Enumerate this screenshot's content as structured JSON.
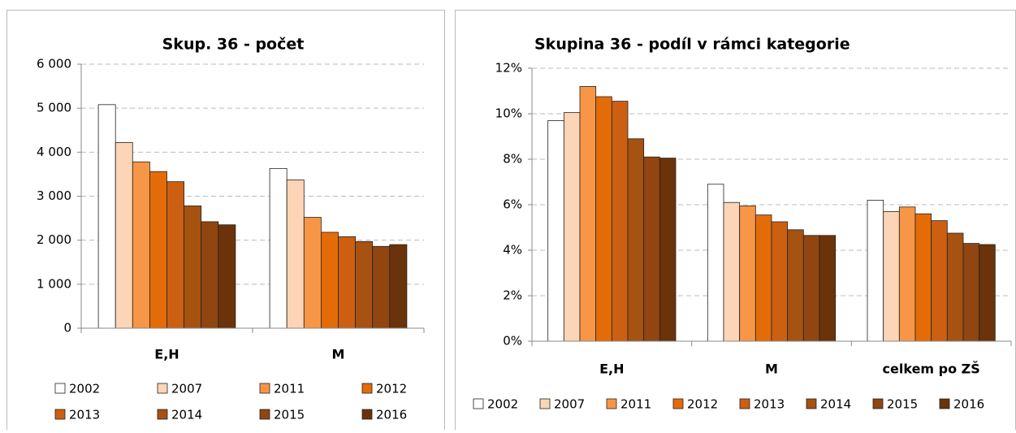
{
  "chart_data": [
    {
      "type": "bar",
      "title": "Skup. 36 - počet",
      "categories": [
        "E,H",
        "M"
      ],
      "series": [
        {
          "name": "2002",
          "color": "#ffffff",
          "values": [
            5080,
            3630
          ]
        },
        {
          "name": "2007",
          "color": "#fbd5b5",
          "values": [
            4220,
            3370
          ]
        },
        {
          "name": "2011",
          "color": "#f79646",
          "values": [
            3780,
            2520
          ]
        },
        {
          "name": "2012",
          "color": "#e36c09",
          "values": [
            3560,
            2180
          ]
        },
        {
          "name": "2013",
          "color": "#cc5f12",
          "values": [
            3330,
            2080
          ]
        },
        {
          "name": "2014",
          "color": "#a65210",
          "values": [
            2780,
            1970
          ]
        },
        {
          "name": "2015",
          "color": "#914510",
          "values": [
            2420,
            1860
          ]
        },
        {
          "name": "2016",
          "color": "#6b3309",
          "values": [
            2350,
            1900
          ]
        }
      ],
      "ylim": [
        0,
        6000
      ],
      "yticks": [
        0,
        {
          "value": 1000,
          "label": "1 000"
        },
        {
          "value": 2000,
          "label": "2 000"
        },
        {
          "value": 3000,
          "label": "3 000"
        },
        {
          "value": 4000,
          "label": "4 000"
        },
        {
          "value": 5000,
          "label": "5 000"
        },
        {
          "value": 6000,
          "label": "6 000"
        }
      ],
      "grid": true,
      "legend": "bottom"
    },
    {
      "type": "bar",
      "title": "Skupina 36 - podíl v rámci kategorie",
      "categories": [
        "E,H",
        "M",
        "celkem po ZŠ"
      ],
      "series": [
        {
          "name": "2002",
          "color": "#ffffff",
          "values": [
            9.7,
            6.9,
            6.2
          ]
        },
        {
          "name": "2007",
          "color": "#fbd5b5",
          "values": [
            10.05,
            6.1,
            5.7
          ]
        },
        {
          "name": "2011",
          "color": "#f79646",
          "values": [
            11.2,
            5.95,
            5.9
          ]
        },
        {
          "name": "2012",
          "color": "#e36c09",
          "values": [
            10.75,
            5.55,
            5.6
          ]
        },
        {
          "name": "2013",
          "color": "#cc5f12",
          "values": [
            10.55,
            5.25,
            5.3
          ]
        },
        {
          "name": "2014",
          "color": "#a65210",
          "values": [
            8.9,
            4.9,
            4.75
          ]
        },
        {
          "name": "2015",
          "color": "#914510",
          "values": [
            8.1,
            4.65,
            4.3
          ]
        },
        {
          "name": "2016",
          "color": "#6b3309",
          "values": [
            8.05,
            4.65,
            4.25
          ]
        }
      ],
      "ylim": [
        0,
        12
      ],
      "yticks": [
        {
          "value": 0,
          "label": "0%"
        },
        {
          "value": 2,
          "label": "2%"
        },
        {
          "value": 4,
          "label": "4%"
        },
        {
          "value": 6,
          "label": "6%"
        },
        {
          "value": 8,
          "label": "8%"
        },
        {
          "value": 10,
          "label": "10%"
        },
        {
          "value": 12,
          "label": "12%"
        }
      ],
      "grid": true,
      "legend": "bottom"
    }
  ]
}
